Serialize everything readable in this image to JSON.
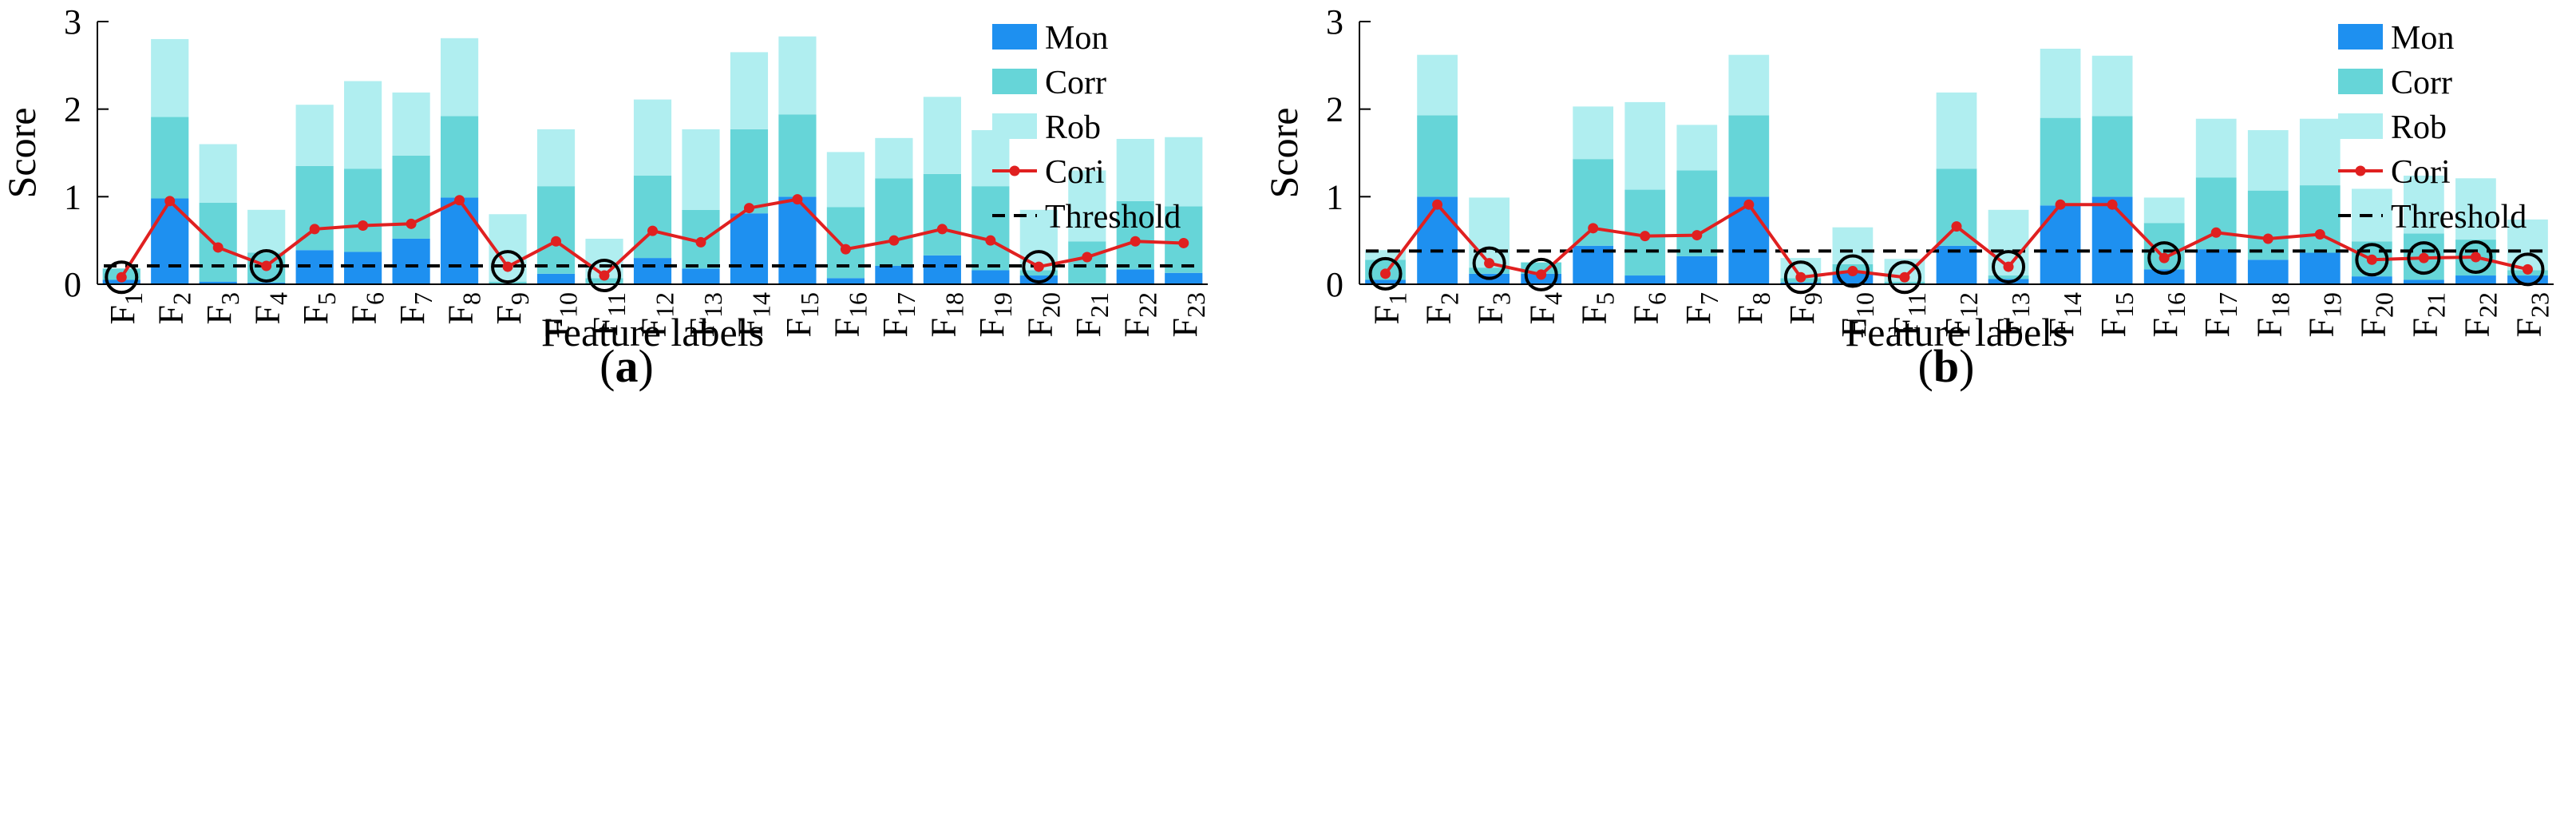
{
  "chart_data": [
    {
      "type": "bar",
      "stacked": true,
      "panel_label": "(a)",
      "xlabel": "Feature labels",
      "ylabel": "Score",
      "ylim": [
        0,
        3
      ],
      "yticks": [
        "0",
        "1",
        "2",
        "3"
      ],
      "categories": [
        "F1",
        "F2",
        "F3",
        "F4",
        "F5",
        "F6",
        "F7",
        "F8",
        "F9",
        "F10",
        "F11",
        "F12",
        "F13",
        "F14",
        "F15",
        "F16",
        "F17",
        "F18",
        "F19",
        "F20",
        "F21",
        "F22",
        "F23"
      ],
      "series": [
        {
          "name": "Mon",
          "values": [
            0.05,
            0.98,
            0.03,
            0.02,
            0.39,
            0.37,
            0.52,
            0.99,
            0.01,
            0.12,
            0.01,
            0.3,
            0.18,
            0.81,
            1.0,
            0.07,
            0.21,
            0.33,
            0.16,
            0.1,
            0.01,
            0.17,
            0.13
          ]
        },
        {
          "name": "Corr",
          "values": [
            0.13,
            0.93,
            0.9,
            0.34,
            0.96,
            0.95,
            0.95,
            0.93,
            0.02,
            1.0,
            0.06,
            0.94,
            0.67,
            0.96,
            0.94,
            0.81,
            1.0,
            0.93,
            0.96,
            0.06,
            0.48,
            0.78,
            0.76
          ]
        },
        {
          "name": "Rob",
          "values": [
            0.0,
            0.89,
            0.67,
            0.49,
            0.7,
            1.0,
            0.72,
            0.89,
            0.77,
            0.65,
            0.45,
            0.87,
            0.92,
            0.88,
            0.89,
            0.63,
            0.46,
            0.88,
            0.64,
            0.69,
            0.81,
            0.71,
            0.79
          ]
        }
      ],
      "line": {
        "name": "Cori",
        "values": [
          0.08,
          0.95,
          0.42,
          0.21,
          0.63,
          0.67,
          0.69,
          0.96,
          0.2,
          0.49,
          0.1,
          0.61,
          0.48,
          0.87,
          0.97,
          0.4,
          0.5,
          0.63,
          0.5,
          0.2,
          0.31,
          0.49,
          0.47
        ]
      },
      "threshold": {
        "name": "Threshold",
        "value": 0.21
      },
      "circled": [
        "F1",
        "F4",
        "F9",
        "F11",
        "F20"
      ],
      "legend": [
        "Mon",
        "Corr",
        "Rob",
        "Cori",
        "Threshold"
      ],
      "legend_position": "top-right"
    },
    {
      "type": "bar",
      "stacked": true,
      "panel_label": "(b)",
      "xlabel": "Feature labels",
      "ylabel": "Score",
      "ylim": [
        0,
        3
      ],
      "yticks": [
        "0",
        "1",
        "2",
        "3"
      ],
      "categories": [
        "F1",
        "F2",
        "F3",
        "F4",
        "F5",
        "F6",
        "F7",
        "F8",
        "F9",
        "F10",
        "F11",
        "F12",
        "F13",
        "F14",
        "F15",
        "F16",
        "F17",
        "F18",
        "F19",
        "F20",
        "F21",
        "F22",
        "F23"
      ],
      "series": [
        {
          "name": "Mon",
          "values": [
            0.05,
            1.0,
            0.12,
            0.12,
            0.44,
            0.1,
            0.32,
            1.0,
            0.02,
            0.13,
            0.01,
            0.44,
            0.06,
            0.9,
            1.0,
            0.17,
            0.4,
            0.28,
            0.36,
            0.09,
            0.05,
            0.1,
            0.1
          ]
        },
        {
          "name": "Corr",
          "values": [
            0.23,
            0.93,
            0.07,
            0.13,
            0.99,
            0.98,
            0.98,
            0.93,
            0.05,
            0.1,
            0.02,
            0.88,
            0.04,
            1.0,
            0.92,
            0.53,
            0.82,
            0.79,
            0.77,
            0.4,
            0.53,
            0.41,
            0.06
          ]
        },
        {
          "name": "Rob",
          "values": [
            0.11,
            0.69,
            0.8,
            0.0,
            0.6,
            1.0,
            0.52,
            0.69,
            0.23,
            0.42,
            0.26,
            0.87,
            0.75,
            0.79,
            0.69,
            0.29,
            0.67,
            0.69,
            0.76,
            0.6,
            0.66,
            0.7,
            0.58
          ]
        }
      ],
      "line": {
        "name": "Cori",
        "values": [
          0.12,
          0.91,
          0.24,
          0.11,
          0.64,
          0.55,
          0.56,
          0.91,
          0.08,
          0.15,
          0.08,
          0.66,
          0.2,
          0.91,
          0.91,
          0.3,
          0.59,
          0.52,
          0.57,
          0.28,
          0.3,
          0.31,
          0.17
        ]
      },
      "threshold": {
        "name": "Threshold",
        "value": 0.38
      },
      "circled": [
        "F1",
        "F3",
        "F4",
        "F9",
        "F10",
        "F11",
        "F13",
        "F16",
        "F20",
        "F21",
        "F22",
        "F23"
      ],
      "legend": [
        "Mon",
        "Corr",
        "Rob",
        "Cori",
        "Threshold"
      ],
      "legend_position": "top-right"
    }
  ],
  "colors": {
    "Mon": "#1e90f0",
    "Corr": "#66d5d8",
    "Rob": "#b0eef0",
    "Cori": "#e02020",
    "Threshold": "#000000",
    "circle": "#000000"
  }
}
